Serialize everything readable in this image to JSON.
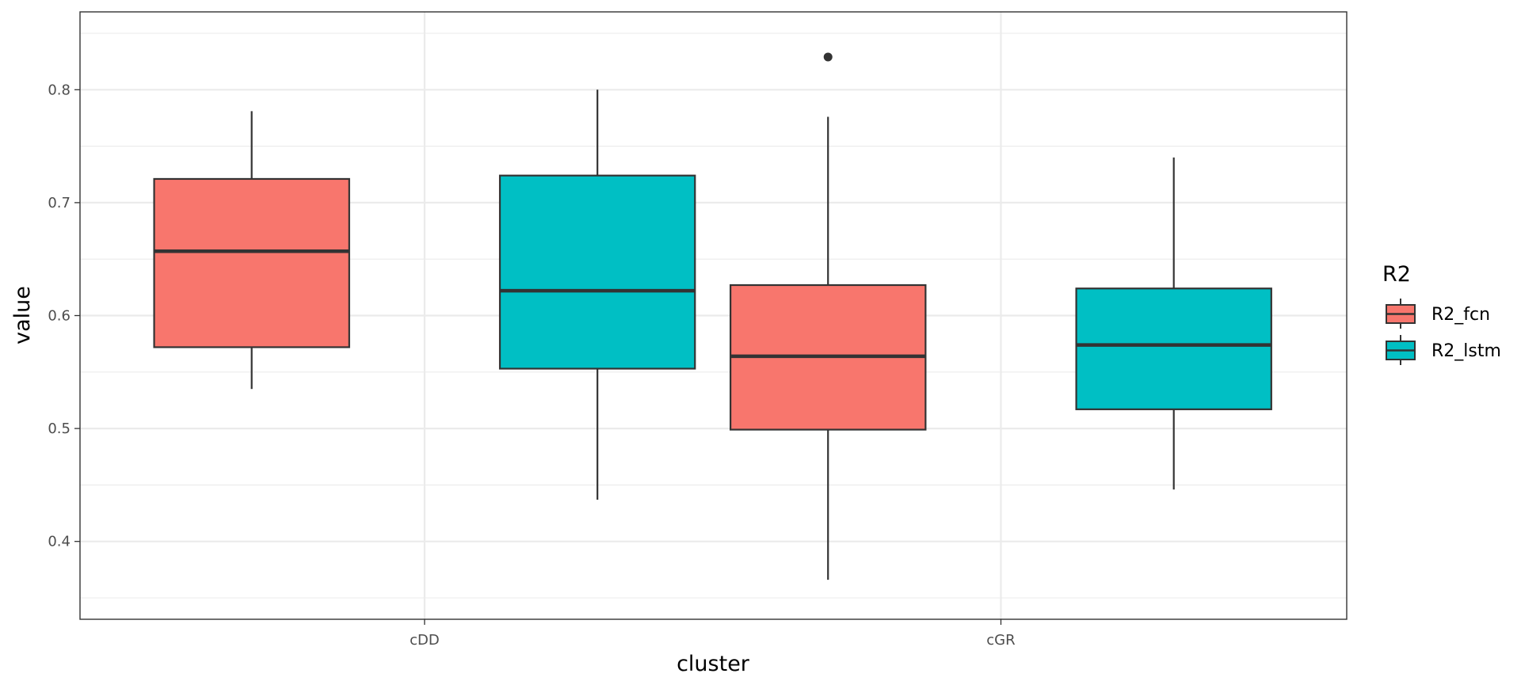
{
  "chart_data": {
    "type": "boxplot",
    "title": "",
    "xlabel": "cluster",
    "ylabel": "value",
    "categories": [
      "cDD",
      "cGR"
    ],
    "yticks": [
      "0.4",
      "0.5",
      "0.6",
      "0.7",
      "0.8"
    ],
    "ylim": [
      0.35,
      0.85
    ],
    "grid": true,
    "legend": {
      "title": "R2",
      "placement": "right"
    },
    "series": [
      {
        "name": "R2_fcn",
        "color": "#F8766D",
        "boxes": [
          {
            "category": "cDD",
            "whisker_low": 0.535,
            "q1": 0.572,
            "median": 0.657,
            "q3": 0.721,
            "whisker_high": 0.781,
            "outliers": []
          },
          {
            "category": "cGR",
            "whisker_low": 0.366,
            "q1": 0.499,
            "median": 0.564,
            "q3": 0.627,
            "whisker_high": 0.776,
            "outliers": [
              0.829
            ]
          }
        ]
      },
      {
        "name": "R2_lstm",
        "color": "#00BFC4",
        "boxes": [
          {
            "category": "cDD",
            "whisker_low": 0.437,
            "q1": 0.553,
            "median": 0.622,
            "q3": 0.724,
            "whisker_high": 0.8,
            "outliers": []
          },
          {
            "category": "cGR",
            "whisker_low": 0.446,
            "q1": 0.517,
            "median": 0.574,
            "q3": 0.624,
            "whisker_high": 0.74,
            "outliers": []
          }
        ]
      }
    ]
  }
}
